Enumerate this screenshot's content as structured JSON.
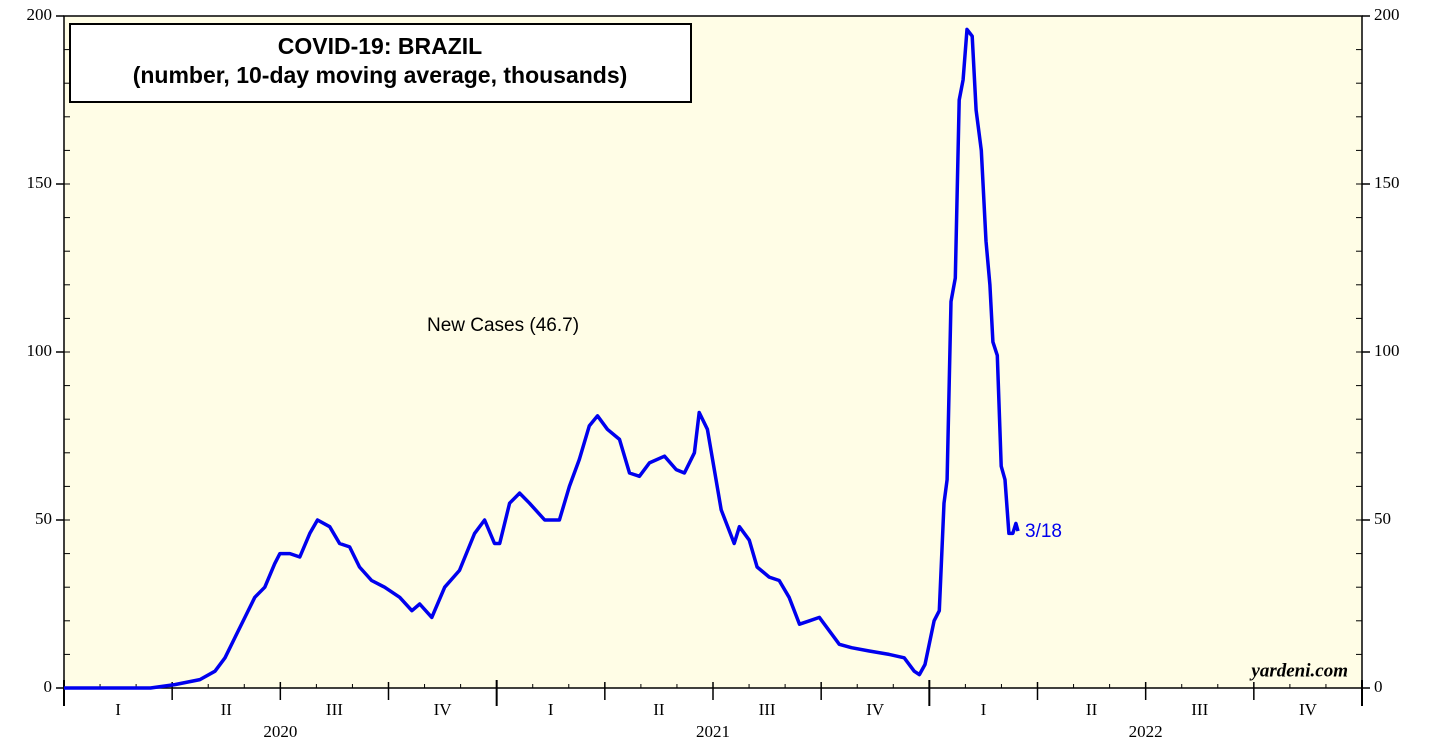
{
  "chart_data": {
    "type": "line",
    "title": "COVID-19: BRAZIL",
    "subtitle": "(number, 10-day moving average, thousands)",
    "annotations": [
      "New Cases (46.7)",
      "3/18"
    ],
    "source": "yardeni.com",
    "x": [
      2020.0,
      2020.2,
      2020.256,
      2020.314,
      2020.349,
      2020.372,
      2020.395,
      2020.418,
      2020.441,
      2020.464,
      2020.487,
      2020.499,
      2020.522,
      2020.545,
      2020.568,
      2020.586,
      2020.614,
      2020.637,
      2020.66,
      2020.683,
      2020.711,
      2020.741,
      2020.776,
      2020.804,
      2020.822,
      2020.85,
      2020.88,
      2020.914,
      2020.949,
      2020.972,
      2020.995,
      2021.007,
      2021.03,
      2021.053,
      2021.076,
      2021.111,
      2021.145,
      2021.168,
      2021.191,
      2021.214,
      2021.233,
      2021.256,
      2021.284,
      2021.307,
      2021.33,
      2021.353,
      2021.388,
      2021.415,
      2021.434,
      2021.457,
      2021.468,
      2021.487,
      2021.503,
      2021.519,
      2021.549,
      2021.561,
      2021.584,
      2021.602,
      2021.63,
      2021.653,
      2021.676,
      2021.7,
      2021.723,
      2021.746,
      2021.769,
      2021.792,
      2021.82,
      2021.861,
      2021.907,
      2021.942,
      2021.965,
      2021.977,
      2021.99,
      2022.011,
      2022.023,
      2022.034,
      2022.041,
      2022.05,
      2022.06,
      2022.069,
      2022.078,
      2022.087,
      2022.099,
      2022.108,
      2022.12,
      2022.131,
      2022.14,
      2022.147,
      2022.157,
      2022.166,
      2022.175,
      2022.184,
      2022.193,
      2022.2,
      2022.205
    ],
    "series": [
      {
        "name": "New Cases",
        "color": "#0000ee",
        "values": [
          0,
          0,
          1,
          2.5,
          5,
          9,
          15,
          21,
          27,
          30,
          37,
          40,
          40,
          39,
          46,
          50,
          48,
          43,
          42,
          36,
          32,
          30,
          27,
          23,
          25,
          21,
          30,
          35,
          46,
          50,
          43,
          43,
          55,
          58,
          55,
          50,
          50,
          60,
          68,
          78,
          81,
          77,
          74,
          64,
          63,
          67,
          69,
          65,
          64,
          70,
          82,
          77,
          65,
          53,
          43,
          48,
          44,
          36,
          33,
          32,
          27,
          19,
          20,
          21,
          17,
          13,
          12,
          11,
          10,
          9,
          5,
          4,
          7,
          20,
          23,
          55,
          62,
          115,
          122,
          175,
          181,
          196,
          194,
          172,
          160,
          133,
          120,
          103,
          99,
          66,
          62,
          46,
          46,
          49,
          46.7
        ]
      }
    ],
    "xlim": [
      2020,
      2023
    ],
    "xticks": [
      {
        "value": 2020.125,
        "label": "I"
      },
      {
        "value": 2020.375,
        "label": "II"
      },
      {
        "value": 2020.625,
        "label": "III"
      },
      {
        "value": 2020.875,
        "label": "IV"
      },
      {
        "value": 2021.125,
        "label": "I"
      },
      {
        "value": 2021.375,
        "label": "II"
      },
      {
        "value": 2021.625,
        "label": "III"
      },
      {
        "value": 2021.875,
        "label": "IV"
      },
      {
        "value": 2022.125,
        "label": "I"
      },
      {
        "value": 2022.375,
        "label": "II"
      },
      {
        "value": 2022.625,
        "label": "III"
      },
      {
        "value": 2022.875,
        "label": "IV"
      }
    ],
    "year_ticks": [
      {
        "value": 2020.5,
        "label": "2020"
      },
      {
        "value": 2021.5,
        "label": "2021"
      },
      {
        "value": 2022.5,
        "label": "2022"
      }
    ],
    "ylim": [
      0,
      200
    ],
    "yticks": [
      0,
      50,
      100,
      150,
      200
    ],
    "y2ticks": [
      0,
      50,
      100,
      150,
      200
    ]
  }
}
